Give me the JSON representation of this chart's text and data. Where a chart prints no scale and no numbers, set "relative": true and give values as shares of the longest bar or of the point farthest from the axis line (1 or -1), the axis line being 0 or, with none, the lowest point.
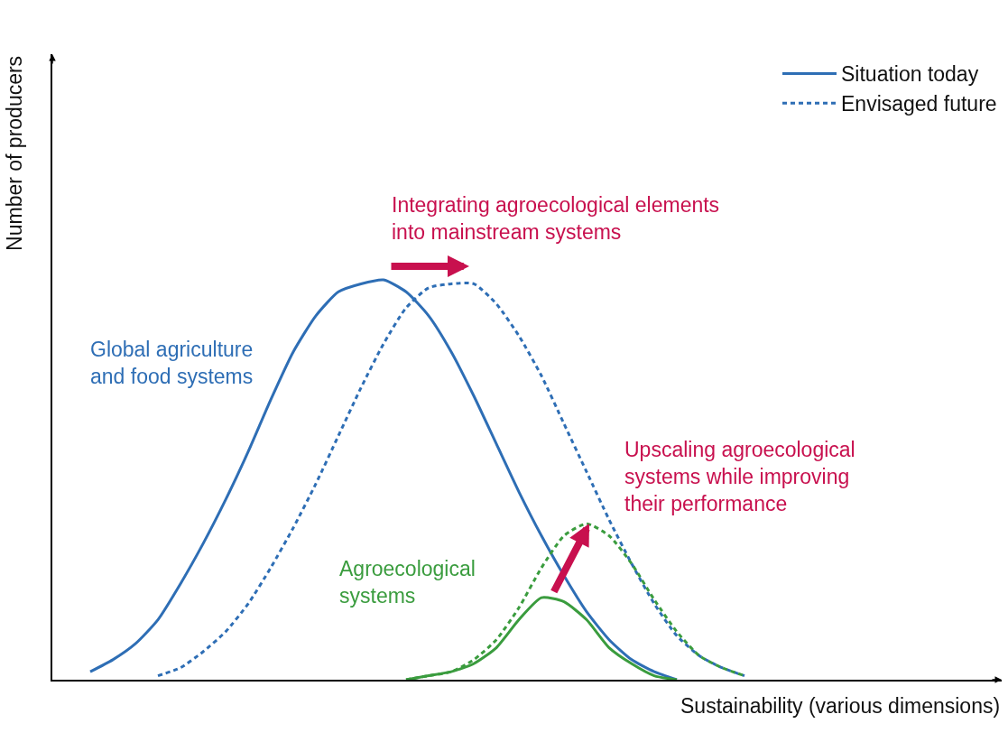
{
  "chart_data": {
    "type": "line",
    "relative": true,
    "xlabel": "Sustainability (various dimensions)",
    "ylabel": "Number of producers",
    "categories": [
      null,
      null,
      null,
      null,
      null,
      null,
      null,
      null,
      null,
      null,
      null,
      null,
      null,
      null,
      null,
      null,
      null,
      null,
      null,
      null,
      null,
      null,
      null,
      null,
      null,
      null,
      null,
      null,
      null,
      null,
      null,
      null
    ],
    "series": [
      {
        "name": "Situation today",
        "color": "#2e6eb5",
        "line_style": "solid",
        "values": [
          null,
          0.02,
          0.05,
          0.09,
          0.15,
          0.24,
          0.34,
          0.45,
          0.57,
          0.7,
          0.82,
          0.91,
          0.97,
          0.99,
          1.0,
          0.97,
          0.91,
          0.82,
          0.71,
          0.59,
          0.47,
          0.36,
          0.26,
          0.17,
          0.1,
          0.05,
          0.02,
          0,
          null,
          null,
          null,
          null
        ]
      },
      {
        "name": "Envisaged future",
        "color": "#2e6eb5",
        "line_style": "dashed",
        "values": [
          null,
          null,
          null,
          null,
          0.01,
          0.03,
          0.07,
          0.12,
          0.19,
          0.28,
          0.38,
          0.49,
          0.61,
          0.73,
          0.84,
          0.93,
          0.98,
          0.99,
          0.99,
          0.94,
          0.86,
          0.76,
          0.64,
          0.52,
          0.4,
          0.29,
          0.19,
          0.11,
          0.06,
          0.03,
          0.01,
          null
        ]
      },
      {
        "color": "#3a9c3e",
        "line_style": "solid",
        "values": [
          null,
          null,
          null,
          null,
          null,
          null,
          null,
          null,
          null,
          null,
          null,
          null,
          null,
          null,
          null,
          0,
          0.01,
          0.02,
          0.04,
          0.08,
          0.15,
          0.205,
          0.195,
          0.15,
          0.08,
          0.04,
          0.01,
          0,
          null,
          null,
          null,
          null
        ]
      },
      {
        "color": "#3a9c3e",
        "line_style": "dashed",
        "values": [
          null,
          null,
          null,
          null,
          null,
          null,
          null,
          null,
          null,
          null,
          null,
          null,
          null,
          null,
          null,
          0,
          0.01,
          0.02,
          0.05,
          0.1,
          0.18,
          0.28,
          0.36,
          0.39,
          0.36,
          0.29,
          0.2,
          0.12,
          0.06,
          0.03,
          0.01,
          null
        ]
      }
    ],
    "annotations": [
      "Integrating agroecological elements\ninto mainstream systems",
      "Upscaling agroecological\nsystems while improving\ntheir performance",
      "Global agriculture\nand food systems",
      "Agroecological\nsystems"
    ],
    "legend": "top right"
  }
}
